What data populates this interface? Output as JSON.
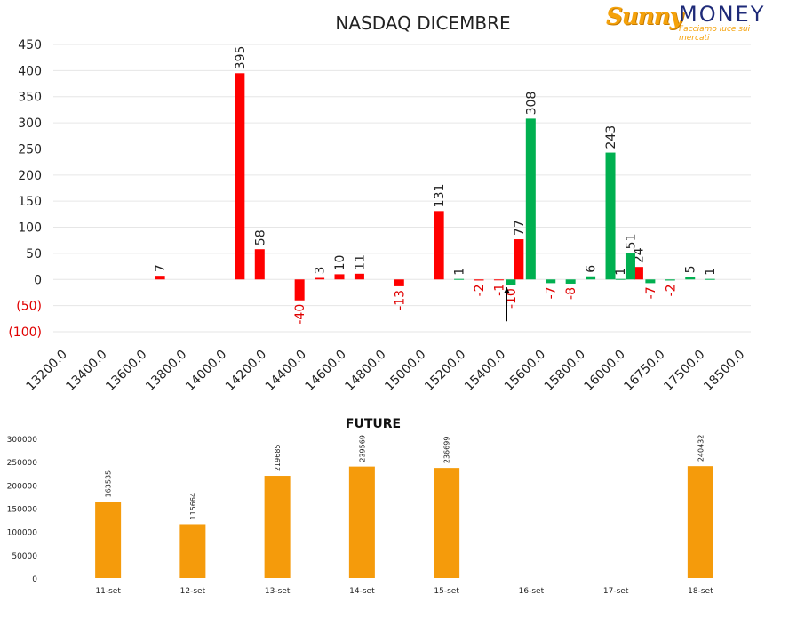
{
  "brand": {
    "name_part1": "Sunny",
    "name_part2": "MONEY",
    "tagline": "Facciamo luce sui mercati"
  },
  "colors": {
    "call": "#ff0000",
    "put": "#00b050",
    "future": "#f59b0b",
    "grid": "#e6e6e6",
    "negative_label": "#e00000"
  },
  "chart_data": [
    {
      "type": "bar",
      "title": "NASDAQ DICEMBRE",
      "xlabel": "",
      "ylabel": "",
      "ylim": [
        -100,
        450
      ],
      "yticks": [
        {
          "v": 450,
          "label": "450"
        },
        {
          "v": 400,
          "label": "400"
        },
        {
          "v": 350,
          "label": "350"
        },
        {
          "v": 300,
          "label": "300"
        },
        {
          "v": 250,
          "label": "250"
        },
        {
          "v": 200,
          "label": "200"
        },
        {
          "v": 150,
          "label": "150"
        },
        {
          "v": 100,
          "label": "100"
        },
        {
          "v": 50,
          "label": "50"
        },
        {
          "v": 0,
          "label": "0"
        },
        {
          "v": -50,
          "label": "(50)"
        },
        {
          "v": -100,
          "label": "(100)"
        }
      ],
      "categories": [
        "13200.0",
        "13400.0",
        "13600.0",
        "13800.0",
        "14000.0",
        "14200.0",
        "14400.0",
        "14600.0",
        "14800.0",
        "15000.0",
        "15200.0",
        "15400.0",
        "15600.0",
        "15800.0",
        "16000.0",
        "16750.0",
        "17500.0",
        "18500.0"
      ],
      "series": [
        {
          "values": [
            {
              "x": 2.5,
              "y": 7,
              "label": "7"
            },
            {
              "x": 4.5,
              "y": 395,
              "label": "395"
            },
            {
              "x": 5.0,
              "y": 58,
              "label": "58"
            },
            {
              "x": 6.0,
              "y": -40,
              "label": "-40"
            },
            {
              "x": 6.5,
              "y": 3,
              "label": "3"
            },
            {
              "x": 7.0,
              "y": 10,
              "label": "10"
            },
            {
              "x": 7.5,
              "y": 11,
              "label": "11"
            },
            {
              "x": 8.5,
              "y": -13,
              "label": "-13"
            },
            {
              "x": 9.5,
              "y": 131,
              "label": "131"
            },
            {
              "x": 10.5,
              "y": -2,
              "label": "-2"
            },
            {
              "x": 11.0,
              "y": -1,
              "label": "-1"
            },
            {
              "x": 11.5,
              "y": 77,
              "label": "77"
            },
            {
              "x": 14.5,
              "y": 24,
              "label": "24"
            }
          ]
        },
        {
          "values": [
            {
              "x": 10.0,
              "y": 1,
              "label": "1"
            },
            {
              "x": 11.3,
              "y": -10,
              "label": "-10"
            },
            {
              "x": 11.8,
              "y": 308,
              "label": "308"
            },
            {
              "x": 12.3,
              "y": -7,
              "label": "-7"
            },
            {
              "x": 12.8,
              "y": -8,
              "label": "-8"
            },
            {
              "x": 13.3,
              "y": 6,
              "label": "6"
            },
            {
              "x": 13.8,
              "y": 243,
              "label": "243"
            },
            {
              "x": 14.3,
              "y": 51,
              "label": "51"
            },
            {
              "x": 14.8,
              "y": -7,
              "label": "-7"
            },
            {
              "x": 15.3,
              "y": -2,
              "label": "-2"
            },
            {
              "x": 15.8,
              "y": 5,
              "label": "5"
            },
            {
              "x": 16.3,
              "y": 1,
              "label": "1"
            },
            {
              "x": 14.05,
              "y": 1,
              "label": "1"
            }
          ]
        }
      ],
      "marker": {
        "x": 11.2,
        "y": -80
      }
    },
    {
      "type": "bar",
      "title": "FUTURE",
      "xlabel": "",
      "ylabel": "",
      "ylim": [
        0,
        300000
      ],
      "yticks": [
        {
          "v": 300000,
          "label": "300000"
        },
        {
          "v": 250000,
          "label": "250000"
        },
        {
          "v": 200000,
          "label": "200000"
        },
        {
          "v": 150000,
          "label": "150000"
        },
        {
          "v": 100000,
          "label": "100000"
        },
        {
          "v": 50000,
          "label": "50000"
        },
        {
          "v": 0,
          "label": "0"
        }
      ],
      "categories": [
        "11-set",
        "12-set",
        "13-set",
        "14-set",
        "15-set",
        "16-set",
        "17-set",
        "18-set"
      ],
      "values": [
        163535,
        115664,
        219685,
        239569,
        236699,
        null,
        null,
        240432
      ]
    }
  ]
}
